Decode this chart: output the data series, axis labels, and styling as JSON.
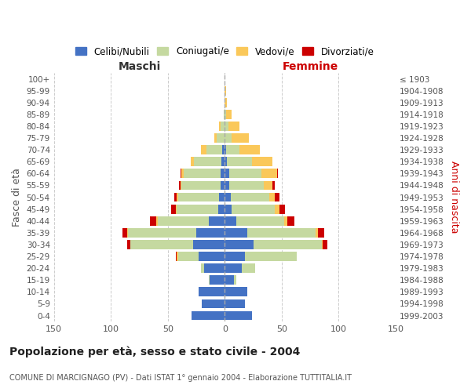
{
  "age_groups": [
    "0-4",
    "5-9",
    "10-14",
    "15-19",
    "20-24",
    "25-29",
    "30-34",
    "35-39",
    "40-44",
    "45-49",
    "50-54",
    "55-59",
    "60-64",
    "65-69",
    "70-74",
    "75-79",
    "80-84",
    "85-89",
    "90-94",
    "95-99",
    "100+"
  ],
  "birth_years": [
    "1999-2003",
    "1994-1998",
    "1989-1993",
    "1984-1988",
    "1979-1983",
    "1974-1978",
    "1969-1973",
    "1964-1968",
    "1959-1963",
    "1954-1958",
    "1949-1953",
    "1944-1948",
    "1939-1943",
    "1934-1938",
    "1929-1933",
    "1924-1928",
    "1919-1923",
    "1914-1918",
    "1909-1913",
    "1904-1908",
    "≤ 1903"
  ],
  "male": {
    "celibe": [
      29,
      20,
      23,
      13,
      18,
      23,
      28,
      25,
      14,
      6,
      5,
      4,
      4,
      3,
      2,
      0,
      0,
      0,
      0,
      0,
      0
    ],
    "coniugato": [
      0,
      0,
      0,
      1,
      3,
      18,
      55,
      60,
      45,
      36,
      36,
      34,
      32,
      24,
      14,
      7,
      4,
      1,
      0,
      0,
      0
    ],
    "vedovo": [
      0,
      0,
      0,
      0,
      0,
      1,
      0,
      1,
      1,
      1,
      1,
      1,
      2,
      3,
      5,
      2,
      1,
      0,
      0,
      0,
      0
    ],
    "divorziato": [
      0,
      0,
      0,
      0,
      0,
      1,
      3,
      4,
      6,
      4,
      2,
      1,
      1,
      0,
      0,
      0,
      0,
      0,
      0,
      0,
      0
    ]
  },
  "female": {
    "nubile": [
      24,
      18,
      20,
      8,
      15,
      18,
      25,
      20,
      10,
      6,
      5,
      4,
      4,
      2,
      1,
      0,
      0,
      0,
      0,
      0,
      0
    ],
    "coniugata": [
      0,
      0,
      0,
      2,
      12,
      45,
      60,
      60,
      42,
      38,
      34,
      30,
      28,
      22,
      12,
      6,
      3,
      1,
      0,
      0,
      0
    ],
    "vedova": [
      0,
      0,
      0,
      0,
      0,
      0,
      1,
      2,
      3,
      4,
      5,
      8,
      14,
      18,
      18,
      15,
      10,
      5,
      2,
      1,
      0
    ],
    "divorziata": [
      0,
      0,
      0,
      0,
      0,
      0,
      4,
      5,
      6,
      5,
      4,
      2,
      1,
      0,
      0,
      0,
      0,
      0,
      0,
      0,
      0
    ]
  },
  "colors": {
    "celibe": "#4472C4",
    "coniugato": "#C5D9A0",
    "vedovo": "#FAC85A",
    "divorziato": "#CC0000"
  },
  "title": "Popolazione per età, sesso e stato civile - 2004",
  "subtitle": "COMUNE DI MARCIGNAGO (PV) - Dati ISTAT 1° gennaio 2004 - Elaborazione TUTTITALIA.IT",
  "xlabel_left": "Maschi",
  "xlabel_right": "Femmine",
  "ylabel_left": "Fasce di età",
  "ylabel_right": "Anni di nascita",
  "xlim": 150,
  "background_color": "#ffffff",
  "grid_color": "#cccccc"
}
